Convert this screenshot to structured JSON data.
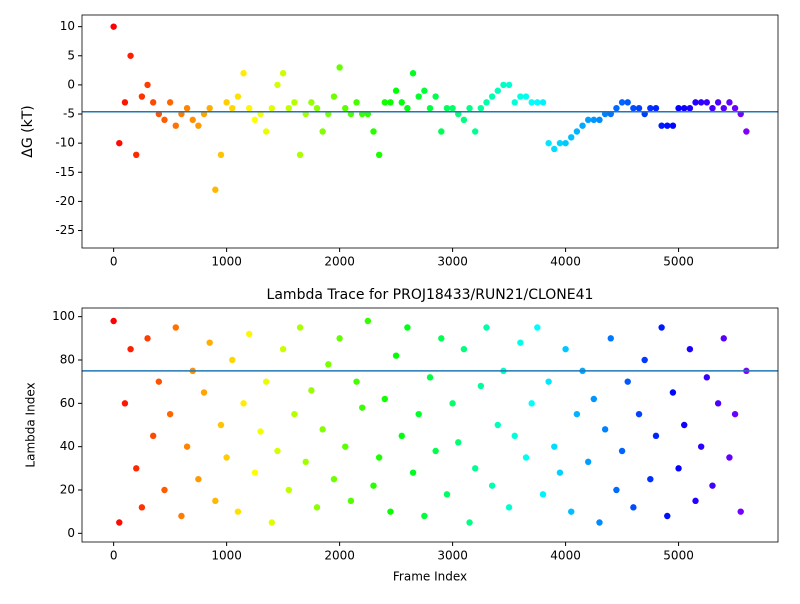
{
  "chart_data": [
    {
      "type": "scatter",
      "y_label": "ΔG (kT)",
      "colormap": "rainbow_r",
      "hline": -4.6,
      "hline_color": "#1f77b4",
      "xlim": [
        -280,
        5880
      ],
      "ylim": [
        -28,
        12
      ],
      "xticks": [
        0,
        1000,
        2000,
        3000,
        4000,
        5000
      ],
      "yticks": [
        10,
        5,
        0,
        -5,
        -10,
        -15,
        -20,
        -25
      ],
      "x": [
        0,
        50,
        100,
        150,
        200,
        250,
        300,
        350,
        400,
        450,
        500,
        550,
        600,
        650,
        700,
        750,
        800,
        850,
        900,
        950,
        1000,
        1050,
        1100,
        1150,
        1200,
        1250,
        1300,
        1350,
        1400,
        1450,
        1500,
        1550,
        1600,
        1650,
        1700,
        1750,
        1800,
        1850,
        1900,
        1950,
        2000,
        2050,
        2100,
        2150,
        2200,
        2250,
        2300,
        2350,
        2400,
        2450,
        2500,
        2550,
        2600,
        2650,
        2700,
        2750,
        2800,
        2850,
        2900,
        2950,
        3000,
        3050,
        3100,
        3150,
        3200,
        3250,
        3300,
        3350,
        3400,
        3450,
        3500,
        3550,
        3600,
        3650,
        3700,
        3750,
        3800,
        3850,
        3900,
        3950,
        4000,
        4050,
        4100,
        4150,
        4200,
        4250,
        4300,
        4350,
        4400,
        4450,
        4500,
        4550,
        4600,
        4650,
        4700,
        4750,
        4800,
        4850,
        4900,
        4950,
        5000,
        5050,
        5100,
        5150,
        5200,
        5250,
        5300,
        5350,
        5400,
        5450,
        5500,
        5550,
        5600
      ],
      "values": [
        10,
        -10,
        -3,
        5,
        -12,
        -2,
        0,
        -3,
        -5,
        -6,
        -3,
        -7,
        -5,
        -4,
        -6,
        -7,
        -5,
        -4,
        -18,
        -12,
        -3,
        -4,
        -2,
        2,
        -4,
        -6,
        -5,
        -8,
        -4,
        0,
        2,
        -4,
        -3,
        -12,
        -5,
        -3,
        -4,
        -8,
        -5,
        -2,
        3,
        -4,
        -5,
        -3,
        -5,
        -5,
        -8,
        -12,
        -3,
        -3,
        -1,
        -3,
        -4,
        2,
        -2,
        -1,
        -4,
        -2,
        -8,
        -4,
        -4,
        -5,
        -6,
        -4,
        -8,
        -4,
        -3,
        -2,
        -1,
        0,
        0,
        -3,
        -2,
        -2,
        -3,
        -3,
        -3,
        -10,
        -11,
        -10,
        -10,
        -9,
        -8,
        -7,
        -6,
        -6,
        -6,
        -5,
        -5,
        -4,
        -3,
        -3,
        -4,
        -4,
        -5,
        -4,
        -4,
        -7,
        -7,
        -7,
        -4,
        -4,
        -4,
        -3,
        -3,
        -3,
        -4,
        -3,
        -4,
        -3,
        -4,
        -5,
        -8
      ]
    },
    {
      "type": "scatter",
      "title": "Lambda Trace for PROJ18433/RUN21/CLONE41",
      "x_label": "Frame Index",
      "y_label": "Lambda Index",
      "colormap": "rainbow_r",
      "hline": 75,
      "hline_color": "#1f77b4",
      "xlim": [
        -280,
        5880
      ],
      "ylim": [
        -4,
        104
      ],
      "xticks": [
        0,
        1000,
        2000,
        3000,
        4000,
        5000
      ],
      "yticks": [
        0,
        20,
        40,
        60,
        80,
        100
      ],
      "x": [
        0,
        50,
        100,
        150,
        200,
        250,
        300,
        350,
        400,
        450,
        500,
        550,
        600,
        650,
        700,
        750,
        800,
        850,
        900,
        950,
        1000,
        1050,
        1100,
        1150,
        1200,
        1250,
        1300,
        1350,
        1400,
        1450,
        1500,
        1550,
        1600,
        1650,
        1700,
        1750,
        1800,
        1850,
        1900,
        1950,
        2000,
        2050,
        2100,
        2150,
        2200,
        2250,
        2300,
        2350,
        2400,
        2450,
        2500,
        2550,
        2600,
        2650,
        2700,
        2750,
        2800,
        2850,
        2900,
        2950,
        3000,
        3050,
        3100,
        3150,
        3200,
        3250,
        3300,
        3350,
        3400,
        3450,
        3500,
        3550,
        3600,
        3650,
        3700,
        3750,
        3800,
        3850,
        3900,
        3950,
        4000,
        4050,
        4100,
        4150,
        4200,
        4250,
        4300,
        4350,
        4400,
        4450,
        4500,
        4550,
        4600,
        4650,
        4700,
        4750,
        4800,
        4850,
        4900,
        4950,
        5000,
        5050,
        5100,
        5150,
        5200,
        5250,
        5300,
        5350,
        5400,
        5450,
        5500,
        5550,
        5600
      ],
      "values": [
        98,
        5,
        60,
        85,
        30,
        12,
        90,
        45,
        70,
        20,
        55,
        95,
        8,
        40,
        75,
        25,
        65,
        88,
        15,
        50,
        35,
        80,
        10,
        60,
        92,
        28,
        47,
        70,
        5,
        38,
        85,
        20,
        55,
        95,
        33,
        66,
        12,
        48,
        78,
        25,
        90,
        40,
        15,
        70,
        58,
        98,
        22,
        35,
        62,
        10,
        82,
        45,
        95,
        28,
        55,
        8,
        72,
        38,
        90,
        18,
        60,
        42,
        85,
        5,
        30,
        68,
        95,
        22,
        50,
        75,
        12,
        45,
        88,
        35,
        60,
        95,
        18,
        70,
        40,
        28,
        85,
        10,
        55,
        75,
        33,
        62,
        5,
        48,
        90,
        20,
        38,
        70,
        12,
        55,
        80,
        25,
        45,
        95,
        8,
        65,
        30,
        50,
        85,
        15,
        40,
        72,
        22,
        60,
        90,
        35,
        55,
        10,
        75
      ]
    }
  ]
}
